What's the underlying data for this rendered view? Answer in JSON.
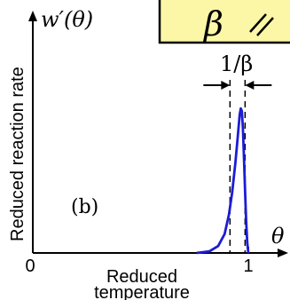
{
  "chart_data": {
    "type": "line",
    "panel_label": "(b)",
    "ylabel": "Reduced reaction rate",
    "ylabel_math": "w′(θ)",
    "xlabel": "Reduced temperature",
    "xlabel_lines": [
      "Reduced",
      "temperature"
    ],
    "x_symbol": "θ",
    "xticks": [
      "0",
      "1"
    ],
    "xlim": [
      0,
      1.12
    ],
    "ylim": [
      0,
      1.0
    ],
    "annotation": "1/β",
    "inset_symbol": "β",
    "dashed_lines_x": [
      0.915,
      0.985
    ],
    "series": [
      {
        "color": "#1c1cd6",
        "x": [
          0.76,
          0.82,
          0.86,
          0.89,
          0.91,
          0.925,
          0.94,
          0.95,
          0.96,
          0.965,
          0.97,
          0.975,
          0.98,
          0.985,
          0.99,
          0.995,
          1.0
        ],
        "y": [
          0.0,
          0.01,
          0.04,
          0.11,
          0.22,
          0.35,
          0.52,
          0.66,
          0.8,
          0.835,
          0.82,
          0.72,
          0.55,
          0.35,
          0.18,
          0.06,
          0.0
        ]
      }
    ]
  }
}
